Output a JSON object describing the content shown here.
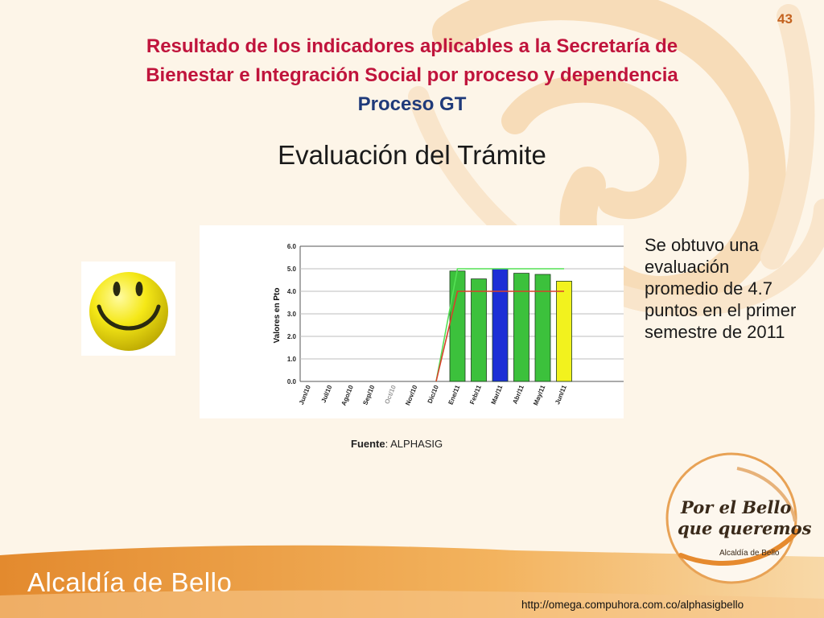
{
  "slide": {
    "number": "43",
    "title_line1": "Resultado de los indicadores aplicables a la Secretaría de",
    "title_line2": "Bienestar e Integración Social por proceso y dependencia",
    "title_line3": "Proceso GT",
    "heading": "Evaluación del Trámite",
    "summary": "Se obtuvo una evaluación promedio de 4.7 puntos en el primer semestre de 2011",
    "source_label": "Fuente",
    "source_value": ": ALPHASIG",
    "footer_brand": "Alcaldía de Bello",
    "url": "http://omega.compuhora.com.co/alphasigbello",
    "logo_line1": "Por el Bello",
    "logo_line2": "que queremos",
    "logo_sub": "Alcaldía de Bello"
  },
  "colors": {
    "title_red": "#c0143c",
    "title_blue": "#1f3a7a",
    "bar_green": "#3cc13c",
    "bar_blue": "#1c2fd6",
    "bar_yellow": "#f2f21e",
    "goal_green": "#55e055",
    "goal_red": "#d8402a"
  },
  "chart_data": {
    "type": "bar",
    "ylabel": "Valores en Pto",
    "ylim": [
      0,
      6
    ],
    "yticks": [
      "0.0",
      "1.0",
      "2.0",
      "3.0",
      "4.0",
      "5.0",
      "6.0"
    ],
    "categories": [
      "Jun/10",
      "Jul/10",
      "Ago/10",
      "Sep/10",
      "Oct/10",
      "Nov/10",
      "Dic/10",
      "Ene/11",
      "Feb/11",
      "Mar/11",
      "Abr/11",
      "May/11",
      "Jun/11"
    ],
    "values": [
      null,
      null,
      null,
      null,
      null,
      null,
      null,
      4.9,
      4.55,
      5.0,
      4.8,
      4.75,
      4.45
    ],
    "bar_colors": [
      "green",
      "green",
      "green",
      "green",
      "green",
      "green",
      "green",
      "green",
      "green",
      "blue",
      "green",
      "green",
      "yellow"
    ],
    "reference_lines": [
      {
        "color": "green",
        "values": [
          null,
          null,
          null,
          null,
          null,
          null,
          0,
          5.0,
          5.0,
          5.0,
          5.0,
          5.0,
          5.0
        ]
      },
      {
        "color": "red",
        "values": [
          null,
          null,
          null,
          null,
          null,
          null,
          0,
          4.0,
          4.0,
          4.0,
          4.0,
          4.0,
          4.0
        ]
      }
    ],
    "grid": true
  }
}
